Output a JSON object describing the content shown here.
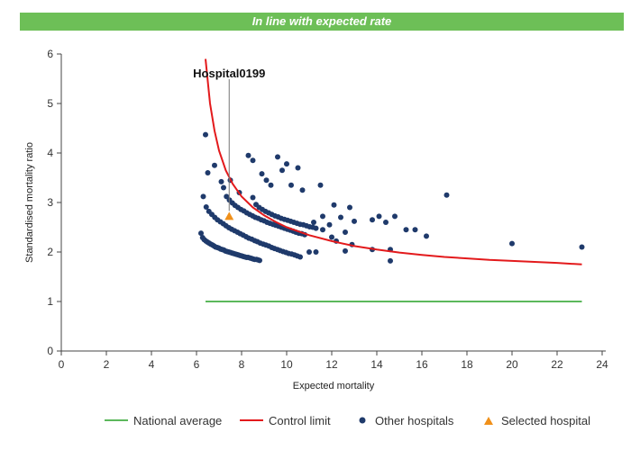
{
  "banner": {
    "text": "In line with expected rate",
    "color": "#6dbf57"
  },
  "chart_data": {
    "type": "scatter",
    "xlabel": "Expected mortality",
    "ylabel": "Standardised mortality ratio",
    "xlim": [
      0,
      24
    ],
    "ylim": [
      0,
      6
    ],
    "xticks": [
      0,
      2,
      4,
      6,
      8,
      10,
      12,
      14,
      16,
      18,
      20,
      22,
      24
    ],
    "yticks": [
      0,
      1,
      2,
      3,
      4,
      5,
      6
    ],
    "grid": false,
    "legend_position": "bottom",
    "annotation": {
      "label": "Hospital0199",
      "x": 7.45,
      "y": 2.72
    },
    "national_average": {
      "name": "National average",
      "color": "#5cb85c",
      "x": [
        6.4,
        23.1
      ],
      "y": [
        1.0,
        1.0
      ]
    },
    "control_limit": {
      "name": "Control limit",
      "color": "#e31a1c",
      "points": [
        [
          6.4,
          5.9
        ],
        [
          6.6,
          5.0
        ],
        [
          6.8,
          4.45
        ],
        [
          7.0,
          4.05
        ],
        [
          7.3,
          3.65
        ],
        [
          7.6,
          3.38
        ],
        [
          8.0,
          3.12
        ],
        [
          8.5,
          2.9
        ],
        [
          9.0,
          2.74
        ],
        [
          9.5,
          2.61
        ],
        [
          10.0,
          2.5
        ],
        [
          11.0,
          2.34
        ],
        [
          12.0,
          2.22
        ],
        [
          13.0,
          2.12
        ],
        [
          14.0,
          2.05
        ],
        [
          15.0,
          1.99
        ],
        [
          16.0,
          1.94
        ],
        [
          17.0,
          1.9
        ],
        [
          18.0,
          1.87
        ],
        [
          19.0,
          1.84
        ],
        [
          20.0,
          1.82
        ],
        [
          21.0,
          1.8
        ],
        [
          22.0,
          1.78
        ],
        [
          23.1,
          1.75
        ]
      ]
    },
    "other_hospitals": {
      "name": "Other hospitals",
      "color": "#1f3a6b",
      "points": [
        [
          6.4,
          4.37
        ],
        [
          6.5,
          3.6
        ],
        [
          6.8,
          3.75
        ],
        [
          7.1,
          3.42
        ],
        [
          7.5,
          3.45
        ],
        [
          7.9,
          3.2
        ],
        [
          8.3,
          3.95
        ],
        [
          8.5,
          3.85
        ],
        [
          8.9,
          3.58
        ],
        [
          9.1,
          3.45
        ],
        [
          9.3,
          3.35
        ],
        [
          9.6,
          3.92
        ],
        [
          9.8,
          3.65
        ],
        [
          10.0,
          3.78
        ],
        [
          10.2,
          3.35
        ],
        [
          10.5,
          3.7
        ],
        [
          10.7,
          3.25
        ],
        [
          11.5,
          3.35
        ],
        [
          12.1,
          2.95
        ],
        [
          12.4,
          2.7
        ],
        [
          12.8,
          2.9
        ],
        [
          13.8,
          2.65
        ],
        [
          14.1,
          2.72
        ],
        [
          14.4,
          2.6
        ],
        [
          14.8,
          2.72
        ],
        [
          15.3,
          2.45
        ],
        [
          15.7,
          2.45
        ],
        [
          16.2,
          2.32
        ],
        [
          17.1,
          3.15
        ],
        [
          20.0,
          2.17
        ],
        [
          23.1,
          2.1
        ],
        [
          11.2,
          2.6
        ],
        [
          11.6,
          2.45
        ],
        [
          11.9,
          2.55
        ],
        [
          12.2,
          2.22
        ],
        [
          12.6,
          2.4
        ],
        [
          13.0,
          2.62
        ],
        [
          13.8,
          2.05
        ],
        [
          14.6,
          2.05
        ],
        [
          14.6,
          1.82
        ],
        [
          12.9,
          2.15
        ],
        [
          12.6,
          2.02
        ],
        [
          11.6,
          2.72
        ],
        [
          12.0,
          2.3
        ],
        [
          11.0,
          2.0
        ],
        [
          11.3,
          2.0
        ]
      ]
    },
    "selected_hospital": {
      "name": "Selected hospital",
      "color": "#f0901a",
      "x": 7.45,
      "y": 2.72
    }
  }
}
